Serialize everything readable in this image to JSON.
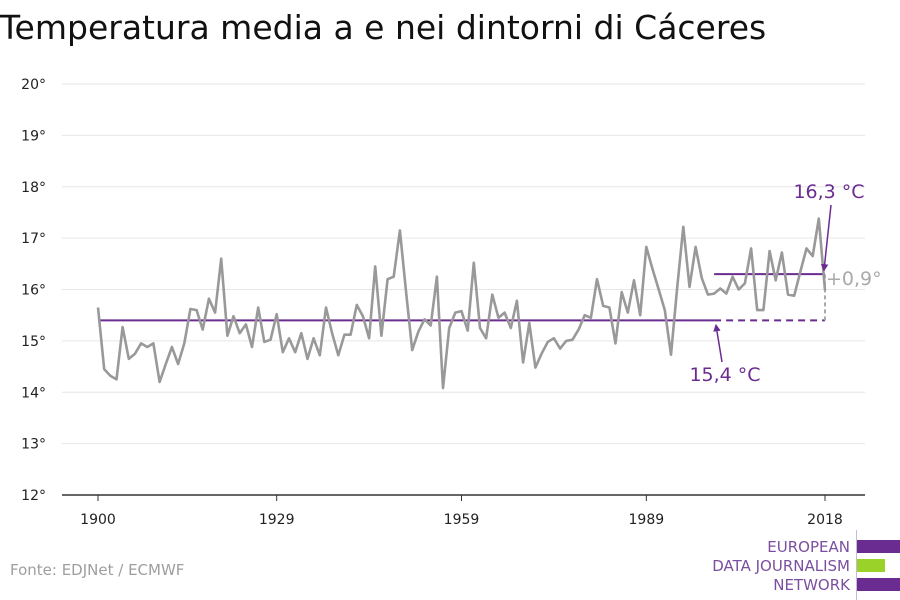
{
  "title": "Temperatura media a e nei dintorni di Cáceres",
  "source": "Fonte: EDJNet / ECMWF",
  "logo": {
    "lines": [
      "EUROPEAN",
      "DATA JOURNALISM",
      "NETWORK"
    ]
  },
  "colors": {
    "series": "#999999",
    "accent": "#6b2c91",
    "axis": "#333333",
    "grid": "#e6e6e6",
    "logo_green": "#9bd22a"
  },
  "chart_data": {
    "type": "line",
    "title": "Temperatura media a e nei dintorni di Cáceres",
    "xlabel": "",
    "ylabel": "",
    "xlim": [
      1900,
      2018
    ],
    "ylim": [
      12,
      20
    ],
    "x_ticks": [
      1900,
      1929,
      1959,
      1989,
      2018
    ],
    "x_tick_labels": [
      "1900",
      "1929",
      "1959",
      "1989",
      "2018"
    ],
    "y_ticks": [
      12,
      13,
      14,
      15,
      16,
      17,
      18,
      19,
      20
    ],
    "y_tick_labels": [
      "12°",
      "13°",
      "14°",
      "15°",
      "16°",
      "17°",
      "18°",
      "19°",
      "20°"
    ],
    "grid": true,
    "series": [
      {
        "x": [
          1900,
          1901,
          1902,
          1903,
          1904,
          1905,
          1906,
          1907,
          1908,
          1909,
          1910,
          1911,
          1912,
          1913,
          1914,
          1915,
          1916,
          1917,
          1918,
          1919,
          1920,
          1921,
          1922,
          1923,
          1924,
          1925,
          1926,
          1927,
          1928,
          1929,
          1930,
          1931,
          1932,
          1933,
          1934,
          1935,
          1936,
          1937,
          1938,
          1939,
          1940,
          1941,
          1942,
          1943,
          1944,
          1945,
          1946,
          1947,
          1948,
          1949,
          1950,
          1951,
          1952,
          1953,
          1954,
          1955,
          1956,
          1957,
          1958,
          1959,
          1960,
          1961,
          1962,
          1963,
          1964,
          1965,
          1966,
          1967,
          1968,
          1969,
          1970,
          1971,
          1972,
          1973,
          1974,
          1975,
          1976,
          1977,
          1978,
          1979,
          1980,
          1981,
          1982,
          1983,
          1984,
          1985,
          1986,
          1987,
          1988,
          1989,
          1990,
          1991,
          1992,
          1993,
          1994,
          1995,
          1996,
          1997,
          1998,
          1999,
          2000,
          2001,
          2002,
          2003,
          2004,
          2005,
          2006,
          2007,
          2008,
          2009,
          2010,
          2011,
          2012,
          2013,
          2014,
          2015,
          2016,
          2017,
          2018
        ],
        "values": [
          15.65,
          14.45,
          14.32,
          14.25,
          15.27,
          14.65,
          14.75,
          14.95,
          14.88,
          14.95,
          14.2,
          14.55,
          14.88,
          14.55,
          14.95,
          15.62,
          15.6,
          15.22,
          15.82,
          15.55,
          16.6,
          15.1,
          15.48,
          15.15,
          15.32,
          14.88,
          15.65,
          14.98,
          15.02,
          15.52,
          14.78,
          15.05,
          14.78,
          15.15,
          14.65,
          15.05,
          14.72,
          15.65,
          15.15,
          14.72,
          15.12,
          15.12,
          15.7,
          15.48,
          15.05,
          16.45,
          15.1,
          16.2,
          16.25,
          17.15,
          15.95,
          14.82,
          15.18,
          15.42,
          15.3,
          16.25,
          14.08,
          15.25,
          15.55,
          15.58,
          15.2,
          16.52,
          15.25,
          15.05,
          15.9,
          15.45,
          15.55,
          15.25,
          15.78,
          14.58,
          15.35,
          14.48,
          14.75,
          14.98,
          15.05,
          14.85,
          15.0,
          15.02,
          15.22,
          15.5,
          15.45,
          16.2,
          15.68,
          15.65,
          14.95,
          15.95,
          15.55,
          16.18,
          15.5,
          16.83,
          16.4,
          16.0,
          15.6,
          14.73,
          16.02,
          17.22,
          16.05,
          16.83,
          16.22,
          15.9,
          15.92,
          16.02,
          15.92,
          16.25,
          16.0,
          16.12,
          16.8,
          15.6,
          15.6,
          16.75,
          16.18,
          16.72,
          15.9,
          15.88,
          16.35,
          16.8,
          16.65,
          17.38,
          15.98
        ]
      }
    ],
    "reference_lines": [
      {
        "label": "15,4 °C",
        "value": 15.4,
        "x_range": [
          1900,
          2018
        ],
        "solid_until": 2000
      },
      {
        "label": "16,3 °C",
        "value": 16.3,
        "x_range": [
          2000,
          2018
        ]
      }
    ],
    "difference_annotation": {
      "label": "+0,9°",
      "x": 2018,
      "from": 15.4,
      "to": 16.3
    }
  }
}
